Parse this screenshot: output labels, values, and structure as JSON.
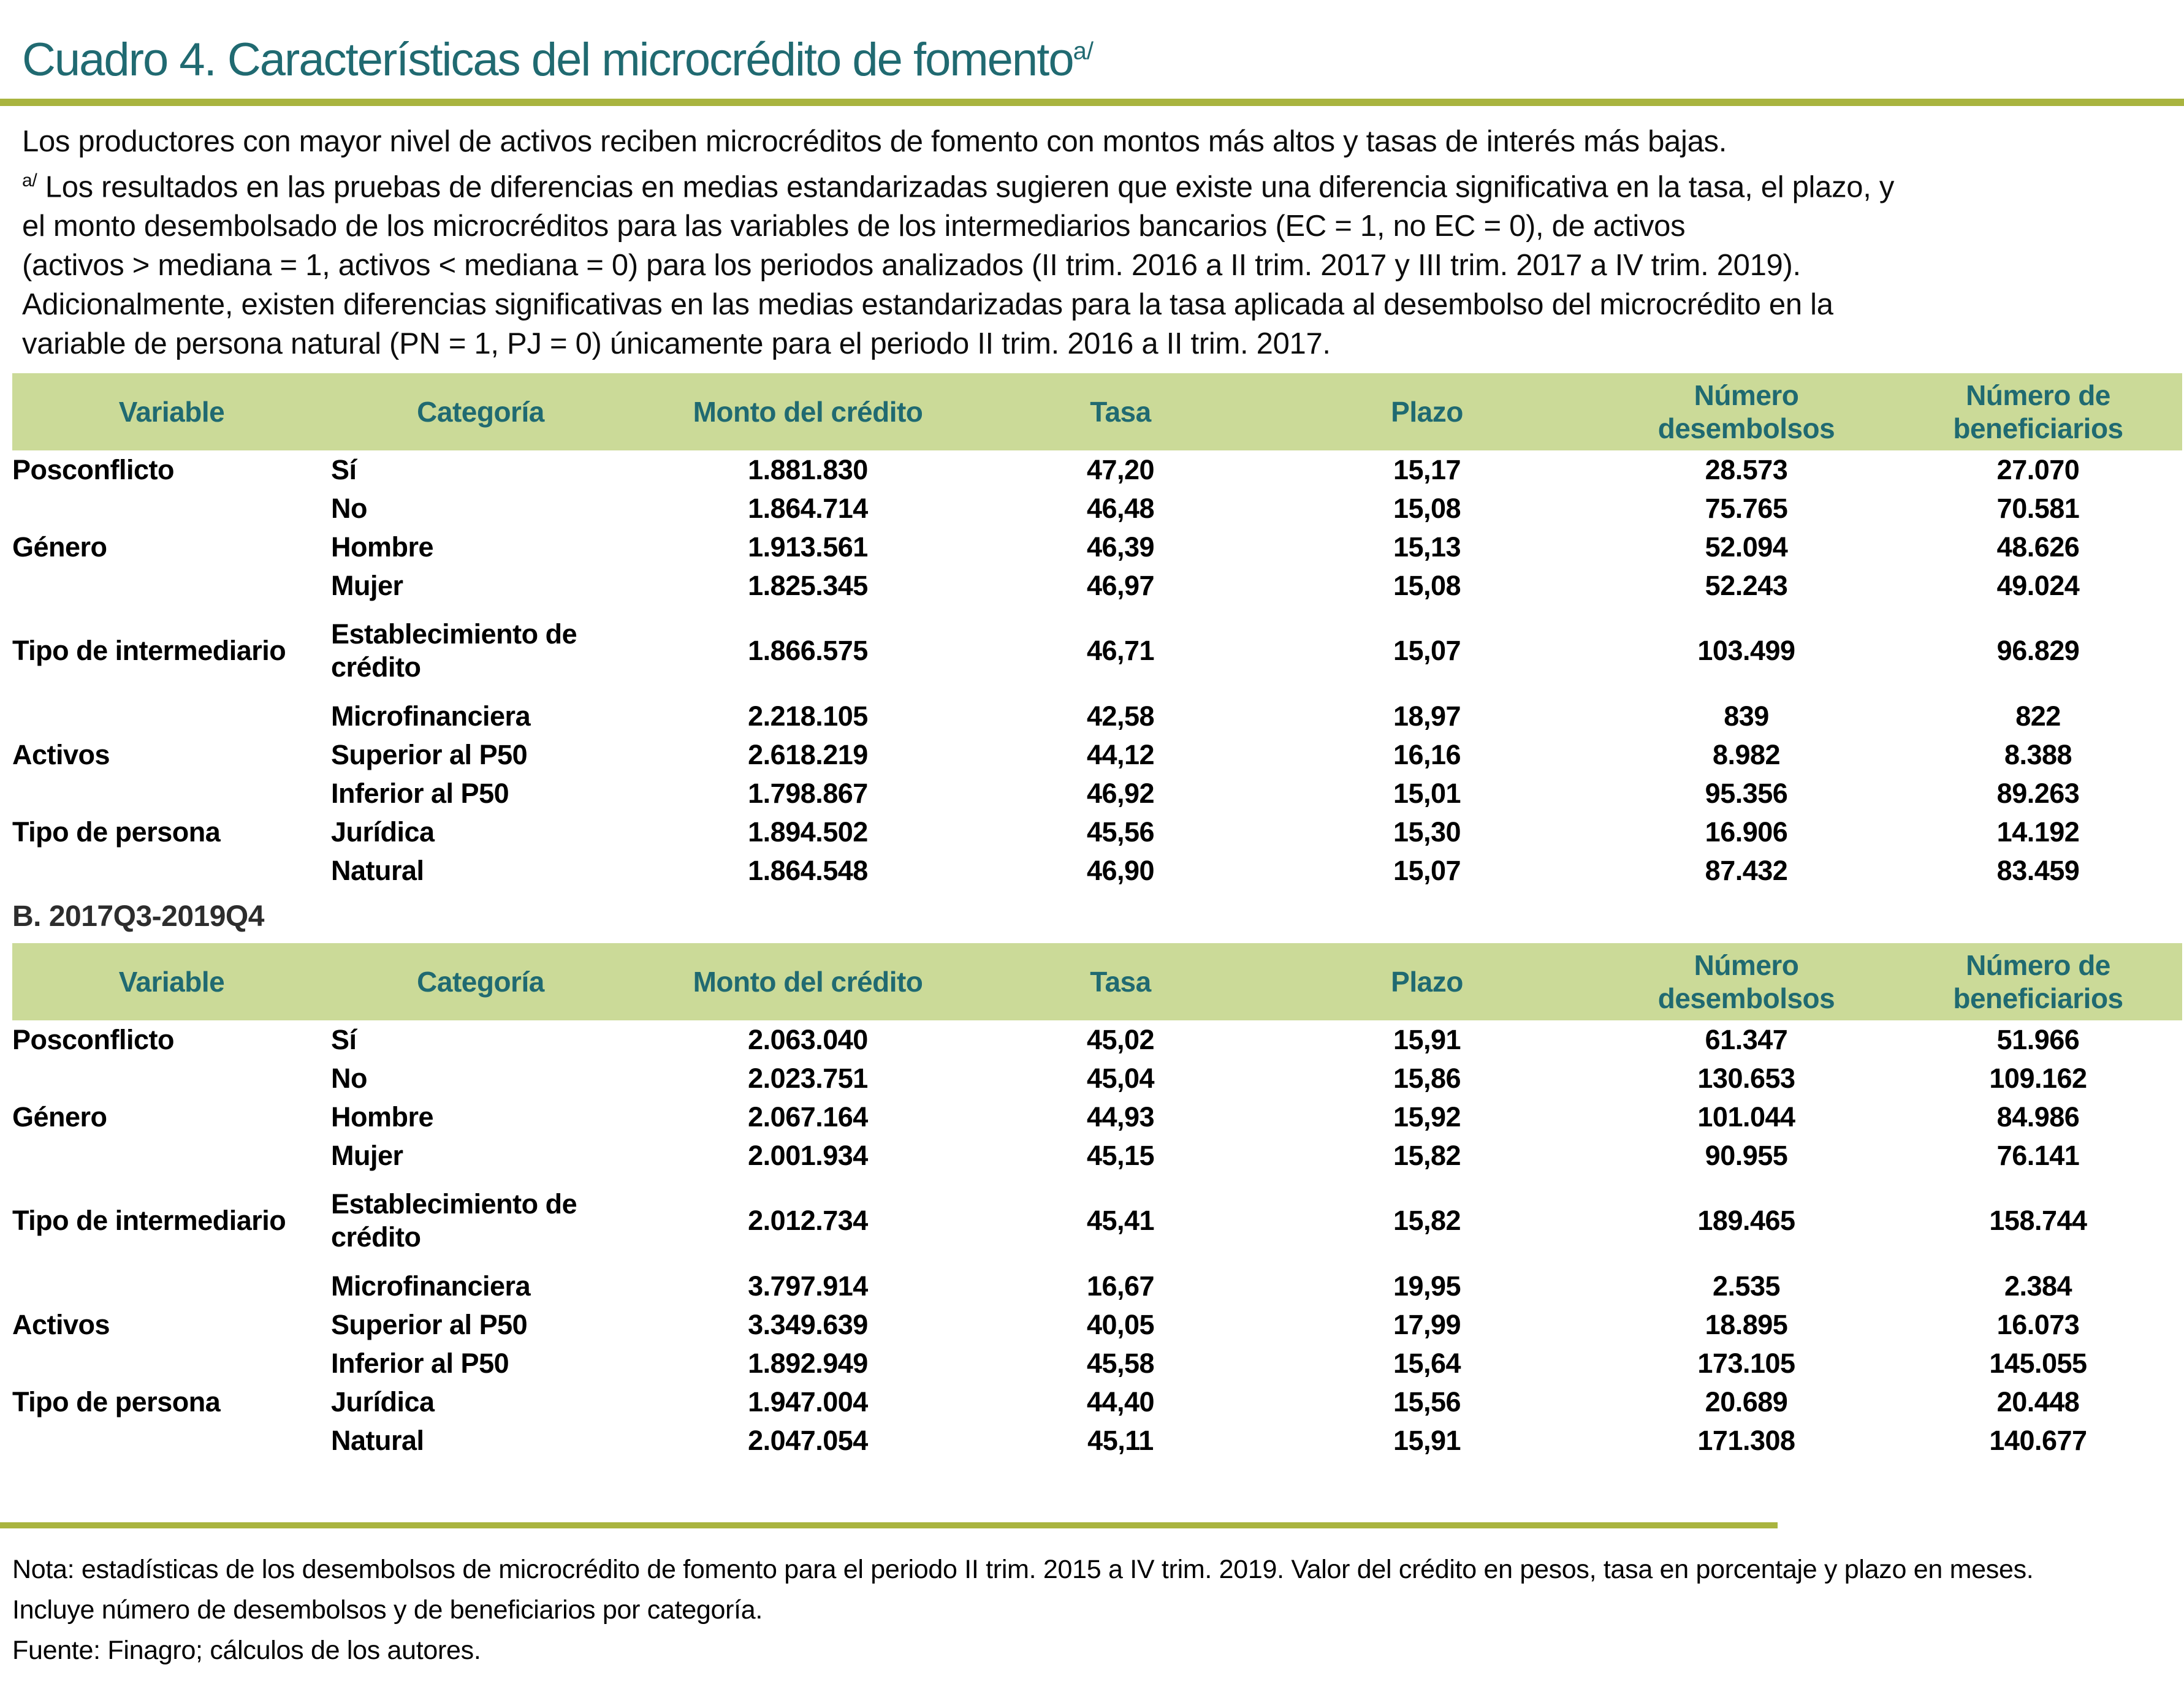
{
  "page": {
    "colors": {
      "teal": "#206a71",
      "olive": "#a9b43f",
      "header_band": "#cbda98"
    },
    "title": {
      "text": "Cuadro 4. Características del microcrédito de fomento",
      "superscript": "a/"
    },
    "intro": {
      "lead": "Los productores con mayor nivel de activos reciben microcréditos de fomento con montos más altos y tasas de interés más bajas.",
      "footnote_marker": "a/",
      "footnote_lines": [
        "Los resultados en las pruebas de diferencias en medias estandarizadas sugieren que existe una diferencia significativa en la tasa, el plazo, y",
        "el monto desembolsado de los microcréditos para las variables de los intermediarios bancarios (EC = 1, no EC = 0), de activos",
        "(activos > mediana = 1, activos < mediana = 0) para los periodos analizados (II trim. 2016 a II trim. 2017 y III trim. 2017 a IV trim. 2019).",
        "Adicionalmente, existen diferencias significativas en las medias estandarizadas para la tasa aplicada al desembolso del microcrédito en la",
        "variable de persona natural (PN = 1, PJ = 0) únicamente para el periodo II trim. 2016 a II trim. 2017."
      ]
    },
    "section_b_label": "B. 2017Q3-2019Q4",
    "table_headers": [
      {
        "l1": "Variable",
        "l2": ""
      },
      {
        "l1": "Categoría",
        "l2": ""
      },
      {
        "l1": "Monto del crédito",
        "l2": ""
      },
      {
        "l1": "Tasa",
        "l2": ""
      },
      {
        "l1": "Plazo",
        "l2": ""
      },
      {
        "l1": "Número",
        "l2": "desembolsos"
      },
      {
        "l1": "Número de",
        "l2": "beneficiarios"
      }
    ],
    "tables": {
      "a": {
        "rows": [
          {
            "variable": "Posconflicto",
            "category": "Sí",
            "values": [
              "1.881.830",
              "47,20",
              "15,17",
              "28.573",
              "27.070"
            ]
          },
          {
            "variable": "",
            "category": "No",
            "values": [
              "1.864.714",
              "46,48",
              "15,08",
              "75.765",
              "70.581"
            ]
          },
          {
            "variable": "Género",
            "category": "Hombre",
            "values": [
              "1.913.561",
              "46,39",
              "15,13",
              "52.094",
              "48.626"
            ]
          },
          {
            "variable": "",
            "category": "Mujer",
            "values": [
              "1.825.345",
              "46,97",
              "15,08",
              "52.243",
              "49.024"
            ]
          },
          {
            "variable": "Tipo de intermediario",
            "category": "Establecimiento de crédito",
            "values": [
              "1.866.575",
              "46,71",
              "15,07",
              "103.499",
              "96.829"
            ]
          },
          {
            "variable": "",
            "category": "Microfinanciera",
            "values": [
              "2.218.105",
              "42,58",
              "18,97",
              "839",
              "822"
            ]
          },
          {
            "variable": "Activos",
            "category": "Superior al P50",
            "values": [
              "2.618.219",
              "44,12",
              "16,16",
              "8.982",
              "8.388"
            ]
          },
          {
            "variable": "",
            "category": "Inferior al P50",
            "values": [
              "1.798.867",
              "46,92",
              "15,01",
              "95.356",
              "89.263"
            ]
          },
          {
            "variable": "Tipo de persona",
            "category": "Jurídica",
            "values": [
              "1.894.502",
              "45,56",
              "15,30",
              "16.906",
              "14.192"
            ]
          },
          {
            "variable": "",
            "category": "Natural",
            "values": [
              "1.864.548",
              "46,90",
              "15,07",
              "87.432",
              "83.459"
            ]
          }
        ]
      },
      "b": {
        "rows": [
          {
            "variable": "Posconflicto",
            "category": "Sí",
            "values": [
              "2.063.040",
              "45,02",
              "15,91",
              "61.347",
              "51.966"
            ]
          },
          {
            "variable": "",
            "category": "No",
            "values": [
              "2.023.751",
              "45,04",
              "15,86",
              "130.653",
              "109.162"
            ]
          },
          {
            "variable": "Género",
            "category": "Hombre",
            "values": [
              "2.067.164",
              "44,93",
              "15,92",
              "101.044",
              "84.986"
            ]
          },
          {
            "variable": "",
            "category": "Mujer",
            "values": [
              "2.001.934",
              "45,15",
              "15,82",
              "90.955",
              "76.141"
            ]
          },
          {
            "variable": "Tipo de intermediario",
            "category": "Establecimiento de crédito",
            "values": [
              "2.012.734",
              "45,41",
              "15,82",
              "189.465",
              "158.744"
            ]
          },
          {
            "variable": "",
            "category": "Microfinanciera",
            "values": [
              "3.797.914",
              "16,67",
              "19,95",
              "2.535",
              "2.384"
            ]
          },
          {
            "variable": "Activos",
            "category": "Superior al P50",
            "values": [
              "3.349.639",
              "40,05",
              "17,99",
              "18.895",
              "16.073"
            ]
          },
          {
            "variable": "",
            "category": "Inferior al P50",
            "values": [
              "1.892.949",
              "45,58",
              "15,64",
              "173.105",
              "145.055"
            ]
          },
          {
            "variable": "Tipo de persona",
            "category": "Jurídica",
            "values": [
              "1.947.004",
              "44,40",
              "15,56",
              "20.689",
              "20.448"
            ]
          },
          {
            "variable": "",
            "category": "Natural",
            "values": [
              "2.047.054",
              "45,11",
              "15,91",
              "171.308",
              "140.677"
            ]
          }
        ]
      }
    },
    "notes": [
      "Nota: estadísticas de los desembolsos de microcrédito de fomento para el periodo II trim. 2015 a IV trim. 2019. Valor del crédito en pesos, tasa en porcentaje y plazo en meses.",
      "Incluye número de desembolsos y de beneficiarios por categoría.",
      "Fuente: Finagro; cálculos de los autores."
    ]
  }
}
